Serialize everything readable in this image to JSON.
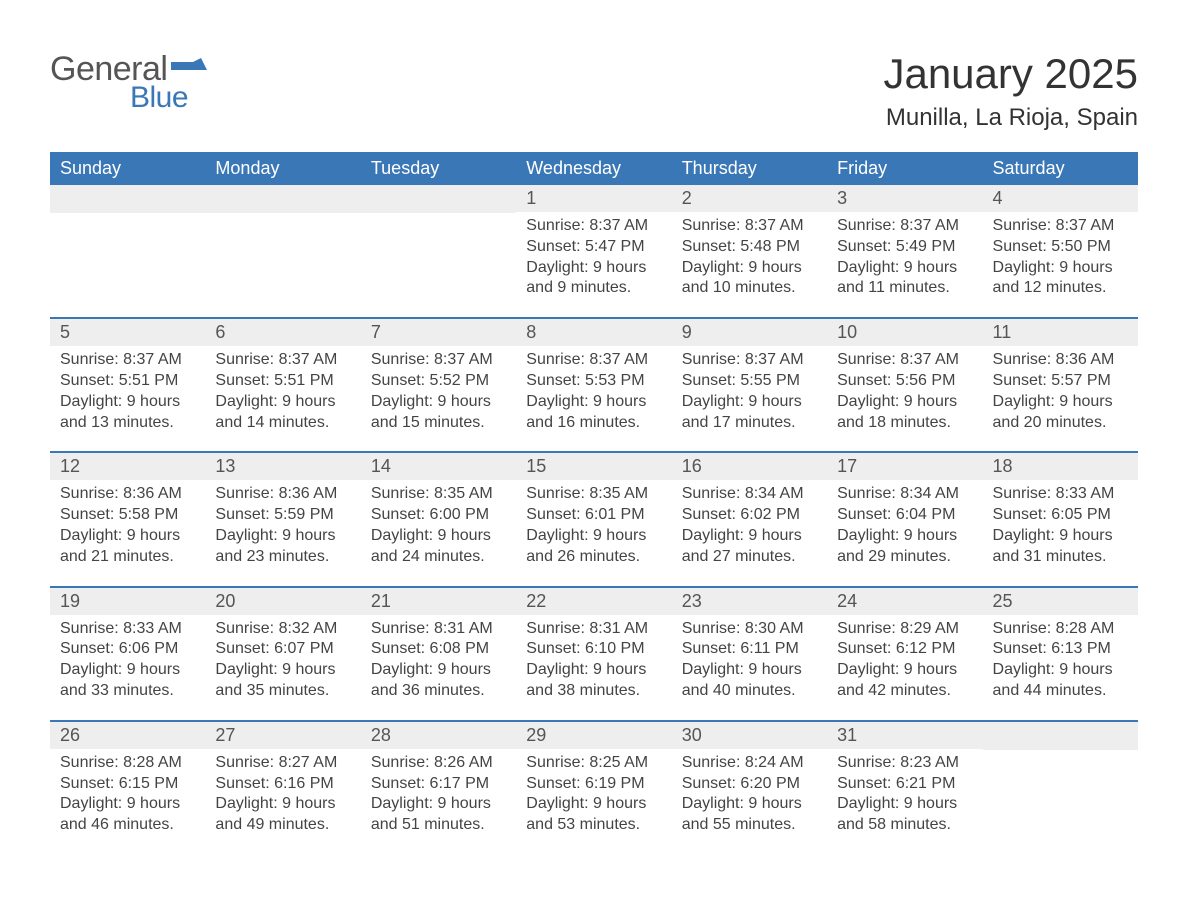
{
  "logo": {
    "text1": "General",
    "text2": "Blue"
  },
  "title": "January 2025",
  "location": "Munilla, La Rioja, Spain",
  "colors": {
    "header_bg": "#3a77b7",
    "header_text": "#ffffff",
    "daynum_bg": "#eeeeee",
    "row_border": "#3a77b7",
    "body_text": "#444444",
    "logo_general": "#555555",
    "logo_blue": "#3a77b7",
    "background": "#ffffff"
  },
  "fonts": {
    "title_size_pt": 32,
    "location_size_pt": 18,
    "dayhead_size_pt": 14,
    "daynum_size_pt": 14,
    "body_size_pt": 12
  },
  "daynames": [
    "Sunday",
    "Monday",
    "Tuesday",
    "Wednesday",
    "Thursday",
    "Friday",
    "Saturday"
  ],
  "weeks": [
    [
      {
        "n": "",
        "sunrise": "",
        "sunset": "",
        "daylight": ""
      },
      {
        "n": "",
        "sunrise": "",
        "sunset": "",
        "daylight": ""
      },
      {
        "n": "",
        "sunrise": "",
        "sunset": "",
        "daylight": ""
      },
      {
        "n": "1",
        "sunrise": "Sunrise: 8:37 AM",
        "sunset": "Sunset: 5:47 PM",
        "daylight": "Daylight: 9 hours and 9 minutes."
      },
      {
        "n": "2",
        "sunrise": "Sunrise: 8:37 AM",
        "sunset": "Sunset: 5:48 PM",
        "daylight": "Daylight: 9 hours and 10 minutes."
      },
      {
        "n": "3",
        "sunrise": "Sunrise: 8:37 AM",
        "sunset": "Sunset: 5:49 PM",
        "daylight": "Daylight: 9 hours and 11 minutes."
      },
      {
        "n": "4",
        "sunrise": "Sunrise: 8:37 AM",
        "sunset": "Sunset: 5:50 PM",
        "daylight": "Daylight: 9 hours and 12 minutes."
      }
    ],
    [
      {
        "n": "5",
        "sunrise": "Sunrise: 8:37 AM",
        "sunset": "Sunset: 5:51 PM",
        "daylight": "Daylight: 9 hours and 13 minutes."
      },
      {
        "n": "6",
        "sunrise": "Sunrise: 8:37 AM",
        "sunset": "Sunset: 5:51 PM",
        "daylight": "Daylight: 9 hours and 14 minutes."
      },
      {
        "n": "7",
        "sunrise": "Sunrise: 8:37 AM",
        "sunset": "Sunset: 5:52 PM",
        "daylight": "Daylight: 9 hours and 15 minutes."
      },
      {
        "n": "8",
        "sunrise": "Sunrise: 8:37 AM",
        "sunset": "Sunset: 5:53 PM",
        "daylight": "Daylight: 9 hours and 16 minutes."
      },
      {
        "n": "9",
        "sunrise": "Sunrise: 8:37 AM",
        "sunset": "Sunset: 5:55 PM",
        "daylight": "Daylight: 9 hours and 17 minutes."
      },
      {
        "n": "10",
        "sunrise": "Sunrise: 8:37 AM",
        "sunset": "Sunset: 5:56 PM",
        "daylight": "Daylight: 9 hours and 18 minutes."
      },
      {
        "n": "11",
        "sunrise": "Sunrise: 8:36 AM",
        "sunset": "Sunset: 5:57 PM",
        "daylight": "Daylight: 9 hours and 20 minutes."
      }
    ],
    [
      {
        "n": "12",
        "sunrise": "Sunrise: 8:36 AM",
        "sunset": "Sunset: 5:58 PM",
        "daylight": "Daylight: 9 hours and 21 minutes."
      },
      {
        "n": "13",
        "sunrise": "Sunrise: 8:36 AM",
        "sunset": "Sunset: 5:59 PM",
        "daylight": "Daylight: 9 hours and 23 minutes."
      },
      {
        "n": "14",
        "sunrise": "Sunrise: 8:35 AM",
        "sunset": "Sunset: 6:00 PM",
        "daylight": "Daylight: 9 hours and 24 minutes."
      },
      {
        "n": "15",
        "sunrise": "Sunrise: 8:35 AM",
        "sunset": "Sunset: 6:01 PM",
        "daylight": "Daylight: 9 hours and 26 minutes."
      },
      {
        "n": "16",
        "sunrise": "Sunrise: 8:34 AM",
        "sunset": "Sunset: 6:02 PM",
        "daylight": "Daylight: 9 hours and 27 minutes."
      },
      {
        "n": "17",
        "sunrise": "Sunrise: 8:34 AM",
        "sunset": "Sunset: 6:04 PM",
        "daylight": "Daylight: 9 hours and 29 minutes."
      },
      {
        "n": "18",
        "sunrise": "Sunrise: 8:33 AM",
        "sunset": "Sunset: 6:05 PM",
        "daylight": "Daylight: 9 hours and 31 minutes."
      }
    ],
    [
      {
        "n": "19",
        "sunrise": "Sunrise: 8:33 AM",
        "sunset": "Sunset: 6:06 PM",
        "daylight": "Daylight: 9 hours and 33 minutes."
      },
      {
        "n": "20",
        "sunrise": "Sunrise: 8:32 AM",
        "sunset": "Sunset: 6:07 PM",
        "daylight": "Daylight: 9 hours and 35 minutes."
      },
      {
        "n": "21",
        "sunrise": "Sunrise: 8:31 AM",
        "sunset": "Sunset: 6:08 PM",
        "daylight": "Daylight: 9 hours and 36 minutes."
      },
      {
        "n": "22",
        "sunrise": "Sunrise: 8:31 AM",
        "sunset": "Sunset: 6:10 PM",
        "daylight": "Daylight: 9 hours and 38 minutes."
      },
      {
        "n": "23",
        "sunrise": "Sunrise: 8:30 AM",
        "sunset": "Sunset: 6:11 PM",
        "daylight": "Daylight: 9 hours and 40 minutes."
      },
      {
        "n": "24",
        "sunrise": "Sunrise: 8:29 AM",
        "sunset": "Sunset: 6:12 PM",
        "daylight": "Daylight: 9 hours and 42 minutes."
      },
      {
        "n": "25",
        "sunrise": "Sunrise: 8:28 AM",
        "sunset": "Sunset: 6:13 PM",
        "daylight": "Daylight: 9 hours and 44 minutes."
      }
    ],
    [
      {
        "n": "26",
        "sunrise": "Sunrise: 8:28 AM",
        "sunset": "Sunset: 6:15 PM",
        "daylight": "Daylight: 9 hours and 46 minutes."
      },
      {
        "n": "27",
        "sunrise": "Sunrise: 8:27 AM",
        "sunset": "Sunset: 6:16 PM",
        "daylight": "Daylight: 9 hours and 49 minutes."
      },
      {
        "n": "28",
        "sunrise": "Sunrise: 8:26 AM",
        "sunset": "Sunset: 6:17 PM",
        "daylight": "Daylight: 9 hours and 51 minutes."
      },
      {
        "n": "29",
        "sunrise": "Sunrise: 8:25 AM",
        "sunset": "Sunset: 6:19 PM",
        "daylight": "Daylight: 9 hours and 53 minutes."
      },
      {
        "n": "30",
        "sunrise": "Sunrise: 8:24 AM",
        "sunset": "Sunset: 6:20 PM",
        "daylight": "Daylight: 9 hours and 55 minutes."
      },
      {
        "n": "31",
        "sunrise": "Sunrise: 8:23 AM",
        "sunset": "Sunset: 6:21 PM",
        "daylight": "Daylight: 9 hours and 58 minutes."
      },
      {
        "n": "",
        "sunrise": "",
        "sunset": "",
        "daylight": ""
      }
    ]
  ]
}
